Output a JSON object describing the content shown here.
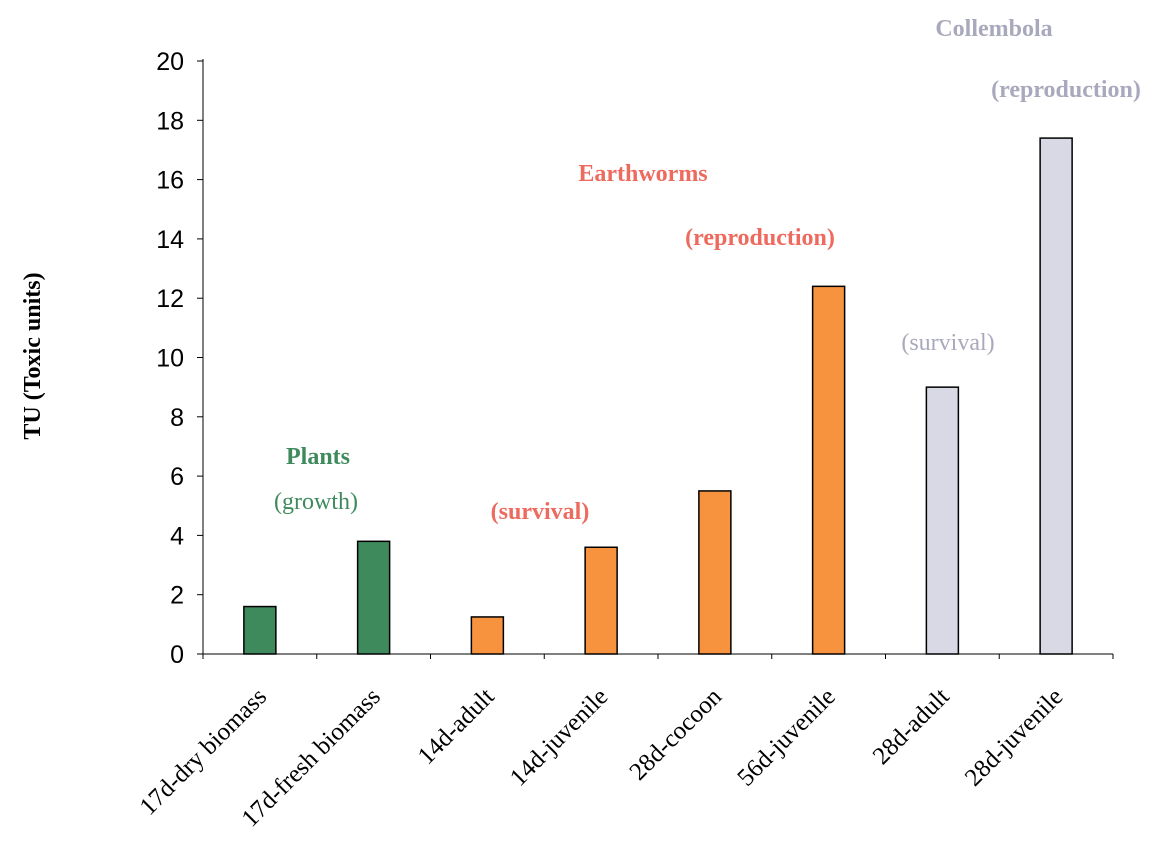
{
  "chart_data": {
    "type": "bar",
    "categories": [
      "17d-dry biomass",
      "17d-fresh biomass",
      "14d-adult",
      "14d-juvenile",
      "28d-cocoon",
      "56d-juvenile",
      "28d-adult",
      "28d-juvenile"
    ],
    "values": [
      1.6,
      3.8,
      1.25,
      3.6,
      5.5,
      12.4,
      9.0,
      17.4
    ],
    "bar_colors": [
      "#3e8a5c",
      "#3e8a5c",
      "#f7923f",
      "#f7923f",
      "#f7923f",
      "#f7923f",
      "#d9d9e6",
      "#d9d9e6"
    ],
    "title": "",
    "xlabel": "",
    "ylabel": "TU (Toxic units)",
    "ylim": [
      0,
      20
    ],
    "yticks": [
      0,
      2,
      4,
      6,
      8,
      10,
      12,
      14,
      16,
      18,
      20
    ],
    "grid": false,
    "annotations": {
      "plants_title": "Plants",
      "plants_sub": "(growth)",
      "earthworms_survival": "(survival)",
      "earthworms_title": "Earthworms",
      "earthworms_sub": "(reproduction)",
      "collembola_survival": "(survival)",
      "collembola_title": "Collembola",
      "collembola_sub": "(reproduction)"
    },
    "colors": {
      "plants": "#3e8a5c",
      "earthworms_text": "#ee6a5e",
      "earthworms_bar": "#f7923f",
      "collembola_text": "#a9a9bd",
      "collembola_bar": "#d9d9e6"
    }
  }
}
